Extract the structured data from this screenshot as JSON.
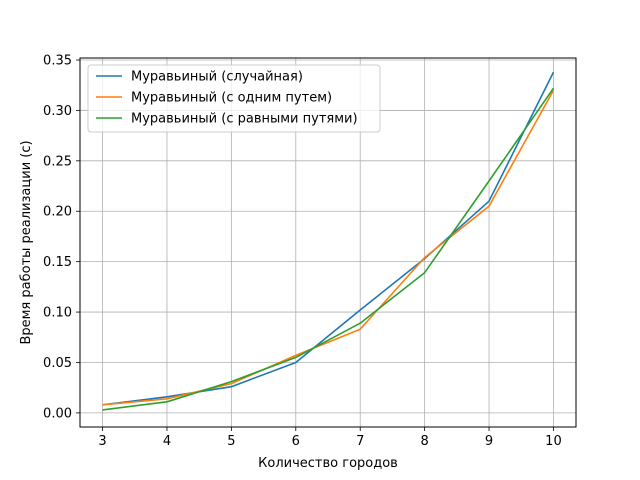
{
  "chart_data": {
    "type": "line",
    "xlabel": "Количество городов",
    "ylabel": "Время работы реализации (с)",
    "xlim": [
      2.65,
      10.35
    ],
    "ylim": [
      -0.014,
      0.352
    ],
    "xticks": [
      3,
      4,
      5,
      6,
      7,
      8,
      9,
      10
    ],
    "yticks": [
      0.0,
      0.05,
      0.1,
      0.15,
      0.2,
      0.25,
      0.3,
      0.35
    ],
    "ytick_labels": [
      "0.00",
      "0.05",
      "0.10",
      "0.15",
      "0.20",
      "0.25",
      "0.30",
      "0.35"
    ],
    "grid": true,
    "legend_position": "top-left",
    "x": [
      3,
      4,
      5,
      6,
      7,
      8,
      9,
      10
    ],
    "series": [
      {
        "name": "Муравьиный (случайная)",
        "color": "#1f77b4",
        "values": [
          0.008,
          0.016,
          0.026,
          0.05,
          0.102,
          0.153,
          0.21,
          0.338
        ]
      },
      {
        "name": "Муравьиный (с одним путем)",
        "color": "#ff7f0e",
        "values": [
          0.008,
          0.014,
          0.029,
          0.057,
          0.083,
          0.154,
          0.205,
          0.32
        ]
      },
      {
        "name": "Муравьиный (с равными путями)",
        "color": "#2ca02c",
        "values": [
          0.003,
          0.011,
          0.031,
          0.055,
          0.089,
          0.139,
          0.23,
          0.322
        ]
      }
    ]
  }
}
